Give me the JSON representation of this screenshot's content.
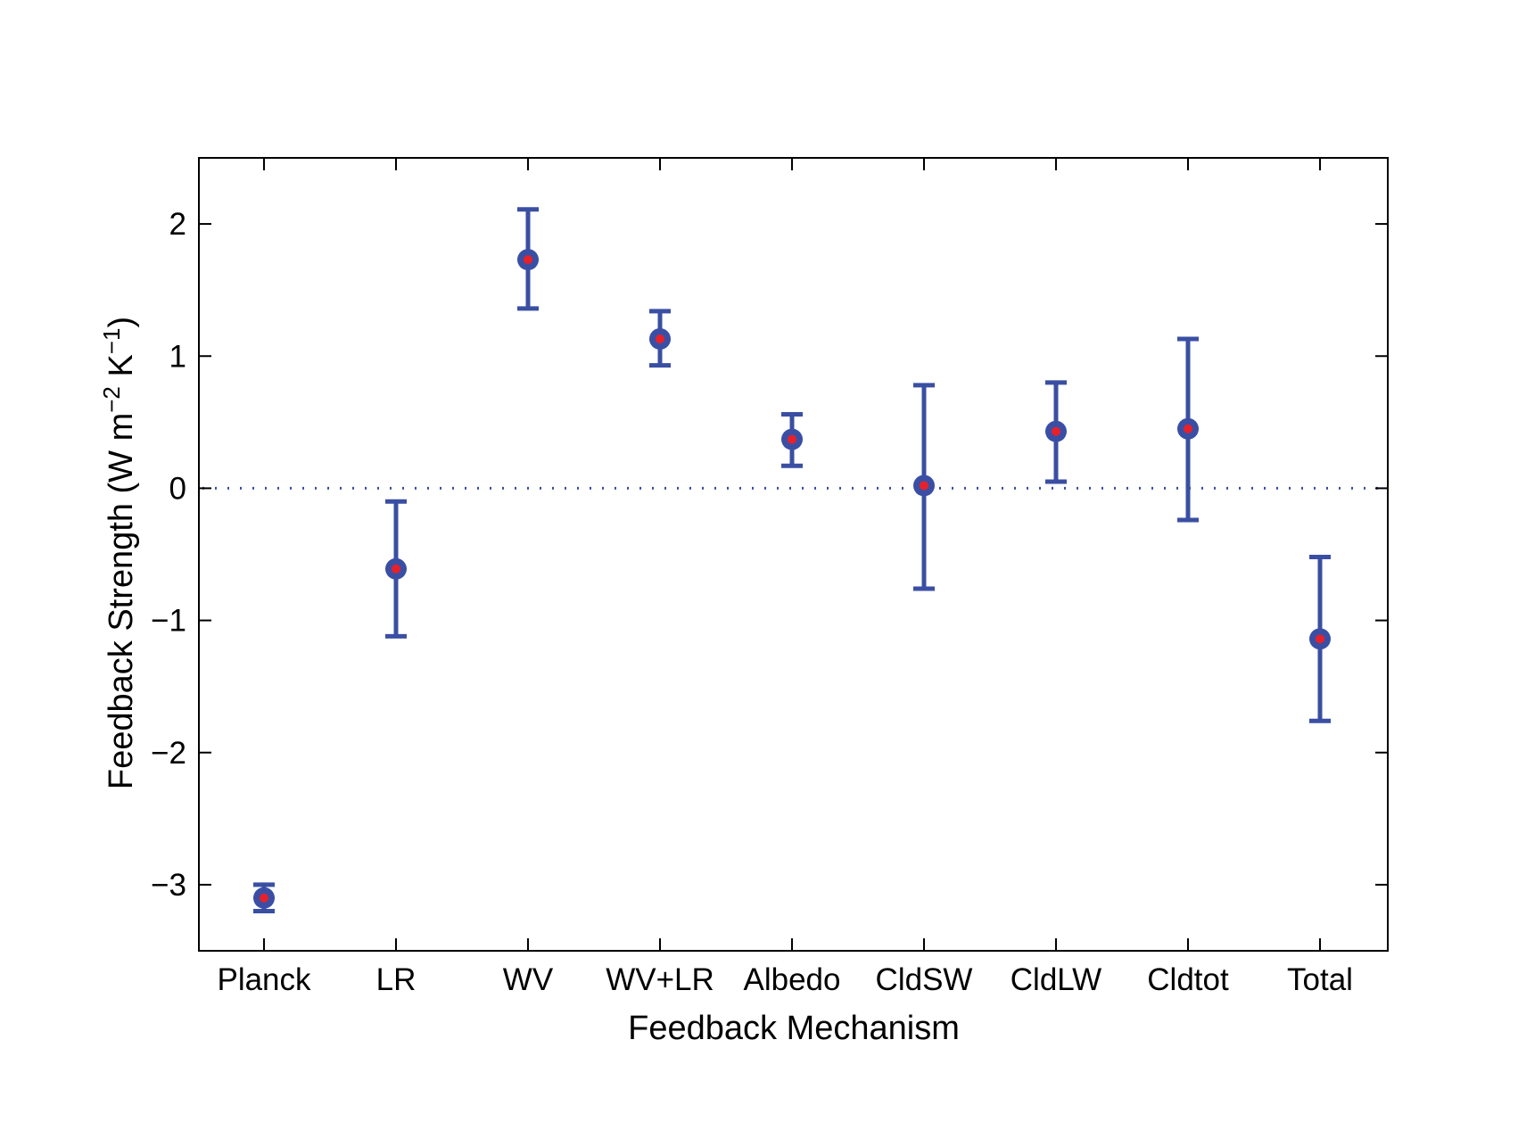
{
  "chart_data": {
    "type": "scatter",
    "xlabel": "Feedback Mechanism",
    "ylabel": {
      "base": "Feedback Strength (W m",
      "exp1": "−2",
      "mid": " K",
      "exp2": "−1",
      "end": ")"
    },
    "categories": [
      "Planck",
      "LR",
      "WV",
      "WV+LR",
      "Albedo",
      "CldSW",
      "CldLW",
      "Cldtot",
      "Total"
    ],
    "series": [
      {
        "values": [
          -3.1,
          -0.61,
          1.73,
          1.13,
          0.37,
          0.02,
          0.43,
          0.45,
          -1.14
        ],
        "error_low": [
          -3.2,
          -1.12,
          1.36,
          0.93,
          0.17,
          -0.76,
          0.05,
          -0.24,
          -1.76
        ],
        "error_high": [
          -3.0,
          -0.1,
          2.11,
          1.34,
          0.56,
          0.78,
          0.8,
          1.13,
          -0.52
        ]
      }
    ],
    "ylim": [
      -3.5,
      2.5
    ],
    "yticks": [
      -3,
      -2,
      -1,
      0,
      1,
      2
    ],
    "ytick_labels": [
      "−3",
      "−2",
      "−1",
      "0",
      "1",
      "2"
    ],
    "reference_line": {
      "y": 0,
      "style": "dotted"
    },
    "colors": {
      "marker": "#3a4fa3",
      "center_dot": "#e8202a",
      "reference": "#3a4fa3",
      "axis": "#000000"
    },
    "grid": false,
    "legend": "none"
  }
}
